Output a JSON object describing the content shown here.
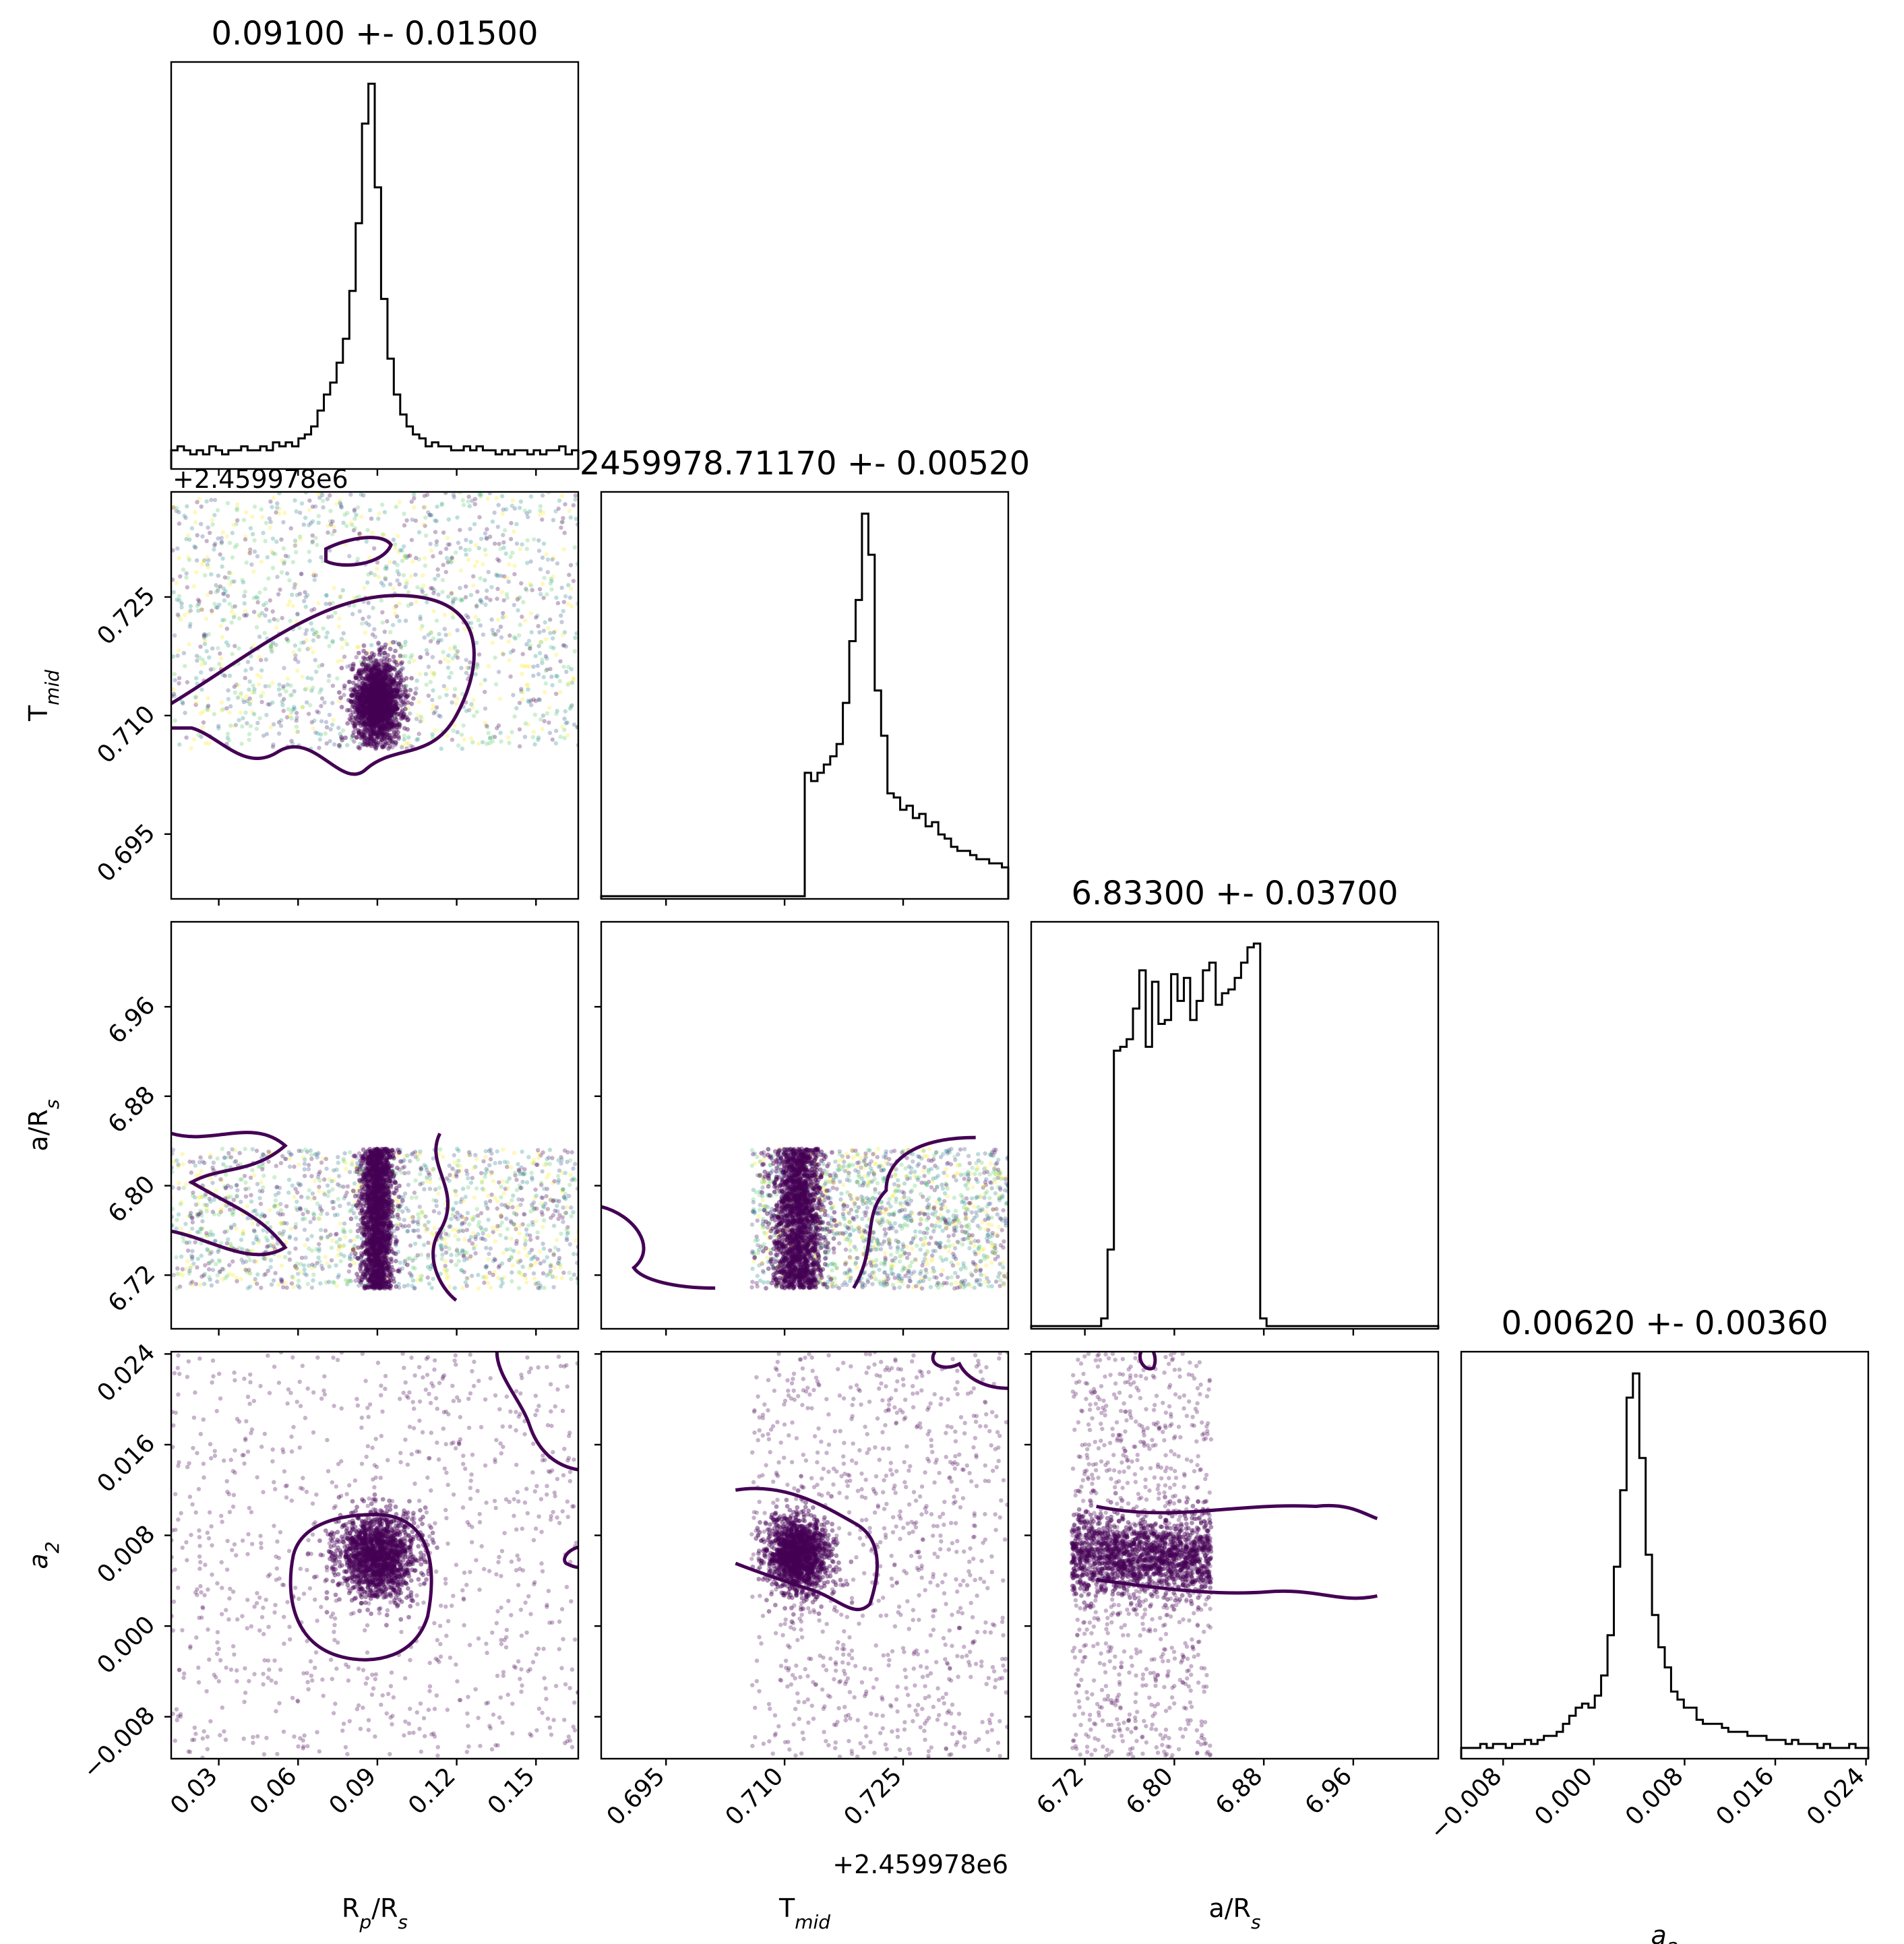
{
  "chart_data": {
    "type": "corner",
    "parameters": [
      {
        "id": "rp",
        "label_main": "R",
        "label_sub": "p",
        "label_suffix": "/R",
        "label_suffix_sub": "s",
        "range": [
          0.012,
          0.166
        ],
        "ticks": [
          "0.03",
          "0.06",
          "0.09",
          "0.12",
          "0.15"
        ],
        "tick_values": [
          0.03,
          0.06,
          0.09,
          0.12,
          0.15
        ]
      },
      {
        "id": "tmid",
        "label_main": "T",
        "label_sub": "mid",
        "label_suffix": "",
        "label_suffix_sub": "",
        "offset": "+2.459978e6",
        "range": [
          0.6868,
          0.7383
        ],
        "ticks": [
          "0.695",
          "0.710",
          "0.725"
        ],
        "tick_values": [
          0.695,
          0.71,
          0.725
        ]
      },
      {
        "id": "ars",
        "label_main": "a",
        "label_sub": "",
        "label_suffix": "/R",
        "label_suffix_sub": "s",
        "range": [
          6.672,
          7.036
        ],
        "ticks": [
          "6.72",
          "6.80",
          "6.88",
          "6.96"
        ],
        "tick_values": [
          6.72,
          6.8,
          6.88,
          6.96
        ]
      },
      {
        "id": "a2",
        "label_main": "a",
        "label_sub": "2",
        "label_suffix": "",
        "label_suffix_sub": "",
        "italic": true,
        "range": [
          -0.0117,
          0.0242
        ],
        "ticks": [
          "−0.008",
          "0.000",
          "0.008",
          "0.016",
          "0.024"
        ],
        "tick_values": [
          -0.008,
          0.0,
          0.008,
          0.016,
          0.024
        ]
      }
    ],
    "titles": [
      "0.09100 +- 0.01500",
      "2459978.71170 +- 0.00520",
      "6.83300 +- 0.03700",
      "0.00620 +- 0.00360"
    ],
    "tmid_y_offset_label": "+2.459978e6",
    "histograms": {
      "rp": {
        "bins": [
          0.012,
          0.166
        ],
        "counts": [
          4,
          5,
          4,
          3,
          4,
          3,
          5,
          4,
          3,
          4,
          4,
          5,
          4,
          4,
          5,
          4,
          6,
          5,
          6,
          5,
          7,
          8,
          10,
          14,
          18,
          21,
          26,
          32,
          44,
          61,
          86,
          96,
          70,
          42,
          27,
          18,
          13,
          10,
          8,
          7,
          5,
          6,
          5,
          5,
          4,
          4,
          5,
          4,
          5,
          4,
          4,
          3,
          4,
          3,
          4,
          4,
          3,
          4,
          3,
          4,
          4,
          5,
          3,
          4
        ]
      },
      "tmid": {
        "bins": [
          0.6868,
          0.7383
        ],
        "counts": [
          0,
          0,
          0,
          0,
          0,
          0,
          0,
          0,
          0,
          0,
          0,
          0,
          0,
          0,
          0,
          0,
          0,
          0,
          0,
          0,
          0,
          0,
          0,
          0,
          0,
          0,
          0,
          0,
          0,
          0,
          0,
          0,
          30,
          28,
          30,
          32,
          34,
          37,
          47,
          62,
          72,
          93,
          83,
          50,
          39,
          25,
          24,
          21,
          22,
          19,
          20,
          17,
          18,
          15,
          14,
          12,
          11,
          11,
          10,
          9,
          9,
          8,
          8,
          7
        ]
      },
      "ars": {
        "bins": [
          6.672,
          7.036
        ],
        "counts": [
          0,
          0,
          0,
          0,
          0,
          0,
          0,
          0,
          0,
          0,
          0,
          2,
          20,
          72,
          73,
          75,
          83,
          93,
          73,
          90,
          79,
          80,
          92,
          85,
          91,
          80,
          85,
          93,
          95,
          84,
          87,
          88,
          91,
          95,
          99,
          100,
          2,
          0,
          0,
          0,
          0,
          0,
          0,
          0,
          0,
          0,
          0,
          0,
          0,
          0,
          0,
          0,
          0,
          0,
          0,
          0,
          0,
          0,
          0,
          0,
          0,
          0,
          0,
          0
        ]
      },
      "a2": {
        "bins": [
          -0.0117,
          0.0242
        ],
        "counts": [
          2,
          2,
          2,
          3,
          2,
          3,
          3,
          2,
          3,
          3,
          4,
          3,
          4,
          5,
          5,
          6,
          8,
          10,
          12,
          13,
          12,
          15,
          20,
          30,
          47,
          66,
          89,
          95,
          74,
          50,
          35,
          27,
          22,
          16,
          14,
          12,
          12,
          9,
          8,
          8,
          8,
          7,
          6,
          6,
          6,
          5,
          5,
          5,
          4,
          4,
          4,
          3,
          4,
          3,
          3,
          3,
          2,
          3,
          2,
          2,
          2,
          3,
          2,
          2
        ]
      }
    },
    "scatter_pairs": [
      {
        "x": "rp",
        "y": "tmid",
        "center": [
          0.09,
          0.7117
        ],
        "spread": [
          0.0045,
          0.0026
        ],
        "x_extent": [
          0.012,
          0.166
        ],
        "y_extent": [
          0.7058,
          0.7383
        ]
      },
      {
        "x": "rp",
        "y": "ars",
        "center": [
          0.09,
          6.775
        ],
        "spread": [
          0.003,
          0.035
        ],
        "x_extent": [
          0.012,
          0.166
        ],
        "y_extent": [
          6.708,
          6.833
        ]
      },
      {
        "x": "tmid",
        "y": "ars",
        "center": [
          0.7117,
          6.775
        ],
        "spread": [
          0.0015,
          0.035
        ],
        "x_extent": [
          0.7058,
          0.7383
        ],
        "y_extent": [
          6.708,
          6.833
        ]
      },
      {
        "x": "rp",
        "y": "a2",
        "center": [
          0.09,
          0.0062
        ],
        "spread": [
          0.0075,
          0.0018
        ],
        "x_extent": [
          0.012,
          0.166
        ],
        "y_extent": [
          -0.0117,
          0.0242
        ]
      },
      {
        "x": "tmid",
        "y": "a2",
        "center": [
          0.7117,
          0.0062
        ],
        "spread": [
          0.002,
          0.0017
        ],
        "x_extent": [
          0.7058,
          0.7383
        ],
        "y_extent": [
          -0.0117,
          0.0242
        ]
      },
      {
        "x": "ars",
        "y": "a2",
        "center": [
          6.775,
          0.0062
        ],
        "spread": [
          0.035,
          0.0017
        ],
        "x_extent": [
          6.708,
          6.833
        ],
        "y_extent": [
          -0.0117,
          0.0242
        ]
      }
    ],
    "contour_color": "#440154",
    "point_colormap": [
      "#440154",
      "#3b528b",
      "#21918c",
      "#5ec962",
      "#fde725"
    ],
    "hist_color": "#000000"
  }
}
